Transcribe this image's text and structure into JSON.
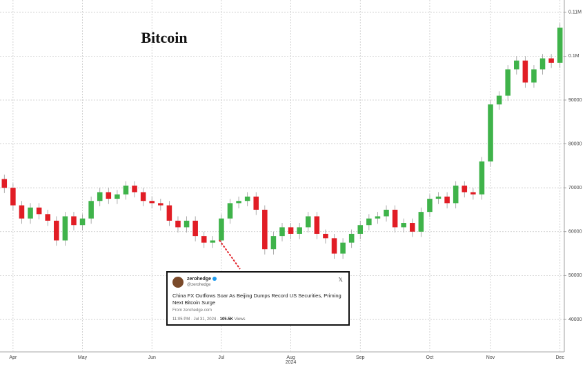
{
  "chart_data": {
    "type": "candlestick",
    "title": "Bitcoin",
    "year_label": "2024",
    "categories": [
      null,
      "Apr",
      null,
      null,
      null,
      null,
      null,
      null,
      null,
      "May",
      null,
      null,
      null,
      null,
      null,
      null,
      null,
      "Jun",
      null,
      null,
      null,
      null,
      null,
      null,
      null,
      "Jul",
      null,
      null,
      null,
      null,
      null,
      null,
      null,
      "Aug",
      null,
      null,
      null,
      null,
      null,
      null,
      null,
      "Sep",
      null,
      null,
      null,
      null,
      null,
      null,
      null,
      "Oct",
      null,
      null,
      null,
      null,
      null,
      null,
      "Nov",
      null,
      null,
      null,
      null,
      null,
      null,
      null,
      "Dec"
    ],
    "open": [
      72000,
      70000,
      66000,
      63000,
      65500,
      64000,
      62500,
      58000,
      63500,
      61500,
      63000,
      67000,
      69000,
      67500,
      68500,
      70500,
      69000,
      67000,
      66500,
      66000,
      62500,
      61000,
      62500,
      59000,
      57500,
      58000,
      63000,
      66500,
      67000,
      68000,
      65000,
      56000,
      59000,
      61000,
      59500,
      61000,
      63500,
      59500,
      58500,
      55000,
      57500,
      59500,
      61500,
      63000,
      63500,
      65000,
      61000,
      62000,
      60000,
      64500,
      67500,
      68000,
      66500,
      70500,
      69000,
      68500,
      76000,
      89000,
      91000,
      97000,
      99000,
      94000,
      97000,
      99500,
      98500
    ],
    "high": [
      73000,
      71000,
      67000,
      66500,
      66500,
      65000,
      63500,
      64500,
      64500,
      64000,
      68000,
      70000,
      70000,
      69500,
      71500,
      71500,
      70000,
      68000,
      67500,
      67000,
      63500,
      63500,
      63500,
      60000,
      59000,
      64000,
      67500,
      68000,
      69000,
      69000,
      66000,
      60000,
      62000,
      62000,
      62000,
      64500,
      64500,
      60500,
      59500,
      58500,
      60500,
      62500,
      64000,
      64500,
      66000,
      66000,
      63000,
      63000,
      65500,
      68500,
      69000,
      69000,
      71500,
      71500,
      70000,
      77000,
      90000,
      92000,
      98000,
      100000,
      100000,
      98000,
      100500,
      100500,
      107500
    ],
    "low": [
      68800,
      64800,
      61800,
      61800,
      62800,
      61300,
      56800,
      56800,
      60300,
      60300,
      61800,
      65800,
      66300,
      66300,
      67300,
      67800,
      65800,
      65300,
      64800,
      61300,
      59800,
      59800,
      57800,
      56300,
      56300,
      56800,
      61800,
      65300,
      65800,
      63800,
      54800,
      54800,
      57800,
      58300,
      58300,
      59800,
      58300,
      57300,
      53800,
      53800,
      56300,
      58300,
      60300,
      61800,
      62300,
      59800,
      59800,
      58800,
      58800,
      63300,
      66300,
      65300,
      65300,
      67800,
      67300,
      67300,
      74800,
      87800,
      89800,
      95800,
      92800,
      92800,
      95800,
      97300,
      97300
    ],
    "close": [
      70000,
      66000,
      63000,
      65500,
      64000,
      62500,
      58000,
      63500,
      61500,
      63000,
      67000,
      69000,
      67500,
      68500,
      70500,
      69000,
      67000,
      66500,
      66000,
      62500,
      61000,
      62500,
      59000,
      57500,
      58000,
      63000,
      66500,
      67000,
      68000,
      65000,
      56000,
      59000,
      61000,
      59500,
      61000,
      63500,
      59500,
      58500,
      55000,
      57500,
      59500,
      61500,
      63000,
      63500,
      65000,
      61000,
      62000,
      60000,
      64500,
      67500,
      68000,
      66500,
      70500,
      69000,
      68500,
      76000,
      89000,
      91000,
      97000,
      99000,
      94000,
      97000,
      99500,
      98500,
      106500
    ],
    "up_color": "#3fb34a",
    "down_color": "#e11d25",
    "ylim": [
      32600,
      112800
    ],
    "yticks": [
      40000,
      50000,
      60000,
      70000,
      80000,
      90000,
      {
        "value": 100000,
        "label": "0.1M"
      },
      {
        "value": 110000,
        "label": "0.11M"
      }
    ],
    "grid": true,
    "tweet": {
      "name": "zerohedge",
      "handle": "@zerohedge",
      "text": "China FX Outflows Soar As Beijing Dumps Record US Securities, Priming Next Bitcoin Surge",
      "source": "From zerohedge.com",
      "time": "11:05 PM · Jul 31, 2024 ·",
      "views": "105.5K",
      "views_label": "Views"
    }
  }
}
